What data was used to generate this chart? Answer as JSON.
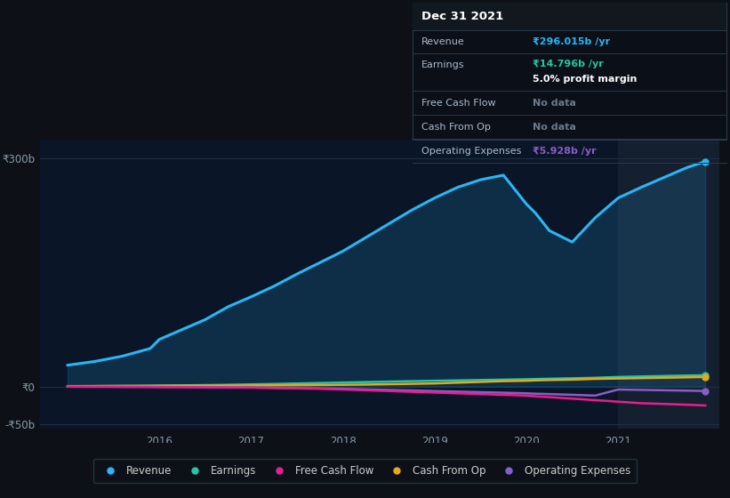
{
  "background_color": "#0d1117",
  "plot_bg_color": "#0a1628",
  "highlight_bg_color": "#141f30",
  "grid_color": "#1e2d3d",
  "years": [
    2015.0,
    2015.3,
    2015.6,
    2015.9,
    2016.0,
    2016.25,
    2016.5,
    2016.75,
    2017.0,
    2017.25,
    2017.5,
    2017.75,
    2018.0,
    2018.25,
    2018.5,
    2018.75,
    2019.0,
    2019.25,
    2019.5,
    2019.75,
    2020.0,
    2020.1,
    2020.25,
    2020.5,
    2020.75,
    2021.0,
    2021.25,
    2021.5,
    2021.75,
    2021.95
  ],
  "revenue": [
    28,
    33,
    40,
    50,
    62,
    75,
    88,
    105,
    118,
    132,
    148,
    163,
    178,
    196,
    214,
    232,
    248,
    262,
    272,
    278,
    240,
    228,
    205,
    190,
    222,
    248,
    262,
    275,
    288,
    296
  ],
  "earnings": [
    0.3,
    0.5,
    0.8,
    1.0,
    1.2,
    1.5,
    1.8,
    2.2,
    2.8,
    3.3,
    4.0,
    4.6,
    5.2,
    5.8,
    6.4,
    7.0,
    7.5,
    8.0,
    8.5,
    9.0,
    9.5,
    9.8,
    10.2,
    10.8,
    11.5,
    12.5,
    13.2,
    13.8,
    14.4,
    14.796
  ],
  "free_cash_flow": [
    -0.3,
    -0.4,
    -0.5,
    -0.6,
    -0.7,
    -0.8,
    -1.0,
    -1.2,
    -1.5,
    -2.0,
    -2.5,
    -3.0,
    -4.0,
    -5.0,
    -6.0,
    -7.0,
    -8.0,
    -9.0,
    -10.0,
    -11.0,
    -12.0,
    -13.0,
    -14.0,
    -16.0,
    -18.0,
    -20.0,
    -22.0,
    -23.0,
    -24.0,
    -25.0
  ],
  "cash_from_op": [
    0.5,
    0.6,
    0.7,
    0.8,
    0.9,
    1.0,
    1.1,
    1.2,
    1.3,
    1.5,
    1.7,
    1.9,
    2.2,
    2.5,
    3.0,
    3.5,
    4.0,
    5.0,
    6.0,
    7.0,
    7.5,
    8.0,
    8.5,
    9.0,
    10.0,
    10.5,
    11.0,
    11.5,
    12.0,
    12.5
  ],
  "operating_expenses": [
    -0.2,
    -0.3,
    -0.4,
    -0.5,
    -0.6,
    -0.7,
    -0.9,
    -1.1,
    -1.3,
    -1.8,
    -2.2,
    -2.6,
    -3.0,
    -3.8,
    -4.5,
    -5.2,
    -6.0,
    -6.8,
    -7.5,
    -8.2,
    -9.0,
    -9.5,
    -10.0,
    -11.0,
    -12.0,
    -4.0,
    -4.5,
    -5.0,
    -5.5,
    -5.928
  ],
  "highlight_x_start": 2021.0,
  "highlight_x_end": 2022.1,
  "ylim": [
    -55,
    325
  ],
  "xtick_min": 2014.7,
  "xtick_max": 2022.1,
  "yticks": [
    -50,
    0,
    300
  ],
  "ytick_labels": [
    "-₹50b",
    "₹0",
    "₹300b"
  ],
  "xticks": [
    2016,
    2017,
    2018,
    2019,
    2020,
    2021
  ],
  "revenue_color": "#29b6f6",
  "earnings_color": "#26c6a2",
  "free_cash_flow_color": "#e91e8c",
  "cash_from_op_color": "#e6a817",
  "operating_expenses_color": "#8a5dc8",
  "table_title": "Dec 31 2021",
  "table_bg": "#0a0f18",
  "table_border": "#2a3a4a",
  "revenue_val": "₹296.015b /yr",
  "earnings_val": "₹14.796b /yr",
  "earnings_sub": "5.0% profit margin",
  "opex_val": "₹5.928b /yr"
}
